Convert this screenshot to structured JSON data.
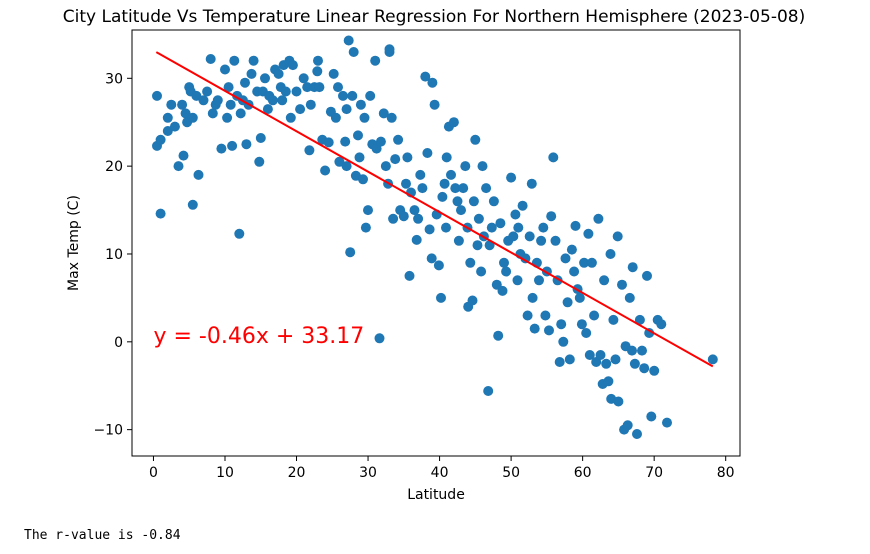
{
  "chart_data": {
    "type": "scatter",
    "title": "City Latitude Vs Temperature Linear Regression For Northern Hemisphere (2023-05-08)",
    "xlabel": "Latitude",
    "ylabel": "Max Temp (C)",
    "xlim": [
      -3,
      82
    ],
    "ylim": [
      -13,
      35.5
    ],
    "xticks": [
      0,
      10,
      20,
      30,
      40,
      50,
      60,
      70,
      80
    ],
    "yticks": [
      -10,
      0,
      10,
      20,
      30
    ],
    "grid": false,
    "point_color": "#1f77b4",
    "line_color": "#ff0000",
    "regression": {
      "slope": -0.46,
      "intercept": 33.17,
      "x_range": [
        0.4,
        78.2
      ]
    },
    "annotation": {
      "text": "y = -0.46x + 33.17",
      "x": 0,
      "y": 0
    },
    "points": [
      [
        0.5,
        28
      ],
      [
        0.5,
        22.3
      ],
      [
        1,
        14.6
      ],
      [
        1,
        23
      ],
      [
        2,
        24
      ],
      [
        2,
        25.5
      ],
      [
        2.5,
        27
      ],
      [
        3,
        24.5
      ],
      [
        3.5,
        20
      ],
      [
        4,
        27
      ],
      [
        4.2,
        21.2
      ],
      [
        4.5,
        26
      ],
      [
        4.7,
        25
      ],
      [
        5,
        29
      ],
      [
        5.2,
        28.5
      ],
      [
        5.5,
        25.5
      ],
      [
        5.5,
        15.6
      ],
      [
        6,
        28
      ],
      [
        6.3,
        19
      ],
      [
        7,
        27.5
      ],
      [
        7.5,
        28.5
      ],
      [
        8,
        32.2
      ],
      [
        8.3,
        26
      ],
      [
        8.7,
        27
      ],
      [
        9,
        27.5
      ],
      [
        9.5,
        22
      ],
      [
        10,
        31
      ],
      [
        10.3,
        25.5
      ],
      [
        10.5,
        29
      ],
      [
        10.8,
        27
      ],
      [
        11,
        22.3
      ],
      [
        11.3,
        32
      ],
      [
        11.7,
        28
      ],
      [
        12,
        12.3
      ],
      [
        12.2,
        26
      ],
      [
        12.5,
        27.5
      ],
      [
        12.8,
        29.5
      ],
      [
        13,
        22.5
      ],
      [
        13.3,
        27
      ],
      [
        13.7,
        30.5
      ],
      [
        14,
        32
      ],
      [
        14.5,
        28.5
      ],
      [
        14.8,
        20.5
      ],
      [
        15,
        23.2
      ],
      [
        15.3,
        28.5
      ],
      [
        15.6,
        30
      ],
      [
        16,
        26.5
      ],
      [
        16.2,
        28
      ],
      [
        16.7,
        27.5
      ],
      [
        17,
        31
      ],
      [
        17.5,
        30.5
      ],
      [
        17.8,
        29
      ],
      [
        18,
        27.5
      ],
      [
        18.2,
        31.5
      ],
      [
        18.5,
        28.5
      ],
      [
        19,
        32
      ],
      [
        19.2,
        25.5
      ],
      [
        19.5,
        31.5
      ],
      [
        20,
        28.5
      ],
      [
        20.5,
        26.5
      ],
      [
        21,
        30
      ],
      [
        21.5,
        29
      ],
      [
        21.8,
        21.8
      ],
      [
        22,
        27
      ],
      [
        22.5,
        29
      ],
      [
        22.9,
        30.8
      ],
      [
        23,
        32
      ],
      [
        23.2,
        29
      ],
      [
        23.6,
        23
      ],
      [
        24,
        19.5
      ],
      [
        24.5,
        22.7
      ],
      [
        24.8,
        26.2
      ],
      [
        25.2,
        30.5
      ],
      [
        25.5,
        25.5
      ],
      [
        25.8,
        29
      ],
      [
        26,
        20.5
      ],
      [
        26.5,
        28
      ],
      [
        26.8,
        22.8
      ],
      [
        27,
        20
      ],
      [
        27,
        26.5
      ],
      [
        27.3,
        34.3
      ],
      [
        27.5,
        10.2
      ],
      [
        27.8,
        28
      ],
      [
        28,
        33
      ],
      [
        28.3,
        18.9
      ],
      [
        28.6,
        23.5
      ],
      [
        28.8,
        21
      ],
      [
        29,
        27
      ],
      [
        29.3,
        18.5
      ],
      [
        29.5,
        25.5
      ],
      [
        29.7,
        13
      ],
      [
        30,
        15
      ],
      [
        30.3,
        28
      ],
      [
        30.6,
        22.5
      ],
      [
        31,
        32
      ],
      [
        31.2,
        22
      ],
      [
        31.6,
        0.4
      ],
      [
        31.8,
        22.8
      ],
      [
        32.2,
        26
      ],
      [
        32.5,
        20
      ],
      [
        32.8,
        18
      ],
      [
        33,
        33
      ],
      [
        33,
        33.3
      ],
      [
        33.3,
        25.5
      ],
      [
        33.5,
        14
      ],
      [
        33.8,
        20.8
      ],
      [
        34.2,
        23
      ],
      [
        34.5,
        15
      ],
      [
        35,
        14.3
      ],
      [
        35.3,
        18
      ],
      [
        35.5,
        21
      ],
      [
        35.8,
        7.5
      ],
      [
        36,
        17
      ],
      [
        36.5,
        15
      ],
      [
        36.8,
        11.6
      ],
      [
        37,
        14
      ],
      [
        37.3,
        19
      ],
      [
        37.6,
        17.5
      ],
      [
        38,
        30.2
      ],
      [
        38.3,
        21.5
      ],
      [
        38.6,
        12.8
      ],
      [
        38.9,
        9.5
      ],
      [
        39,
        29.5
      ],
      [
        39.3,
        27
      ],
      [
        39.6,
        14.5
      ],
      [
        39.9,
        8.7
      ],
      [
        40.2,
        5
      ],
      [
        40.4,
        16.5
      ],
      [
        40.7,
        18
      ],
      [
        40.9,
        13
      ],
      [
        41,
        21
      ],
      [
        41.3,
        24.5
      ],
      [
        41.6,
        19
      ],
      [
        42,
        25
      ],
      [
        42.2,
        17.5
      ],
      [
        42.5,
        16
      ],
      [
        42.7,
        11.5
      ],
      [
        43,
        15
      ],
      [
        43.3,
        17.5
      ],
      [
        43.6,
        20
      ],
      [
        43.9,
        13
      ],
      [
        44,
        4
      ],
      [
        44.3,
        9
      ],
      [
        44.6,
        4.7
      ],
      [
        44.8,
        16
      ],
      [
        45,
        23
      ],
      [
        45.3,
        11
      ],
      [
        45.5,
        14
      ],
      [
        45.8,
        8
      ],
      [
        46,
        20
      ],
      [
        46.2,
        12
      ],
      [
        46.5,
        17.5
      ],
      [
        46.8,
        -5.6
      ],
      [
        47,
        11
      ],
      [
        47.3,
        13
      ],
      [
        47.6,
        16
      ],
      [
        48,
        6.5
      ],
      [
        48.2,
        0.7
      ],
      [
        48.5,
        13.5
      ],
      [
        48.8,
        5.8
      ],
      [
        49,
        9
      ],
      [
        49.3,
        8
      ],
      [
        49.6,
        11.5
      ],
      [
        50,
        18.7
      ],
      [
        50.3,
        12
      ],
      [
        50.6,
        14.5
      ],
      [
        50.9,
        7
      ],
      [
        51,
        13
      ],
      [
        51.3,
        10
      ],
      [
        51.6,
        15.5
      ],
      [
        52,
        9.5
      ],
      [
        52.3,
        3
      ],
      [
        52.6,
        12
      ],
      [
        52.9,
        18
      ],
      [
        53,
        5
      ],
      [
        53.3,
        1.5
      ],
      [
        53.6,
        9
      ],
      [
        53.9,
        7
      ],
      [
        54.2,
        11.5
      ],
      [
        54.5,
        13
      ],
      [
        54.8,
        3
      ],
      [
        55,
        8
      ],
      [
        55.3,
        1.3
      ],
      [
        55.6,
        14.3
      ],
      [
        55.9,
        21
      ],
      [
        56.2,
        11.5
      ],
      [
        56.5,
        7
      ],
      [
        56.8,
        -2.3
      ],
      [
        57,
        2
      ],
      [
        57.3,
        0
      ],
      [
        57.6,
        9.5
      ],
      [
        57.9,
        4.5
      ],
      [
        58.2,
        -2
      ],
      [
        58.5,
        10.5
      ],
      [
        58.8,
        8
      ],
      [
        59,
        13.2
      ],
      [
        59.3,
        6
      ],
      [
        59.6,
        5
      ],
      [
        59.9,
        2
      ],
      [
        60.2,
        9
      ],
      [
        60.5,
        1
      ],
      [
        60.8,
        12.3
      ],
      [
        61,
        -1.5
      ],
      [
        61.3,
        9
      ],
      [
        61.6,
        3
      ],
      [
        61.9,
        -2.3
      ],
      [
        62.2,
        14
      ],
      [
        62.5,
        -1.5
      ],
      [
        62.8,
        -4.8
      ],
      [
        63,
        7
      ],
      [
        63.3,
        -2.5
      ],
      [
        63.6,
        -4.5
      ],
      [
        63.9,
        10
      ],
      [
        64,
        -6.5
      ],
      [
        64.3,
        2.5
      ],
      [
        64.6,
        -2
      ],
      [
        64.9,
        12
      ],
      [
        65,
        -6.8
      ],
      [
        65.5,
        6.5
      ],
      [
        65.8,
        -10
      ],
      [
        66,
        -0.5
      ],
      [
        66.3,
        -9.5
      ],
      [
        66.6,
        5
      ],
      [
        66.9,
        -1
      ],
      [
        67,
        8.5
      ],
      [
        67.3,
        -2.5
      ],
      [
        67.6,
        -10.5
      ],
      [
        68,
        2.5
      ],
      [
        68.3,
        -1
      ],
      [
        68.6,
        -3
      ],
      [
        69,
        7.5
      ],
      [
        69.3,
        1
      ],
      [
        69.6,
        -8.5
      ],
      [
        70,
        -3.3
      ],
      [
        70.5,
        2.5
      ],
      [
        71,
        2
      ],
      [
        71.8,
        -9.2
      ],
      [
        78.2,
        -2
      ]
    ]
  },
  "output": {
    "r_value_text": "The r-value is -0.84"
  }
}
